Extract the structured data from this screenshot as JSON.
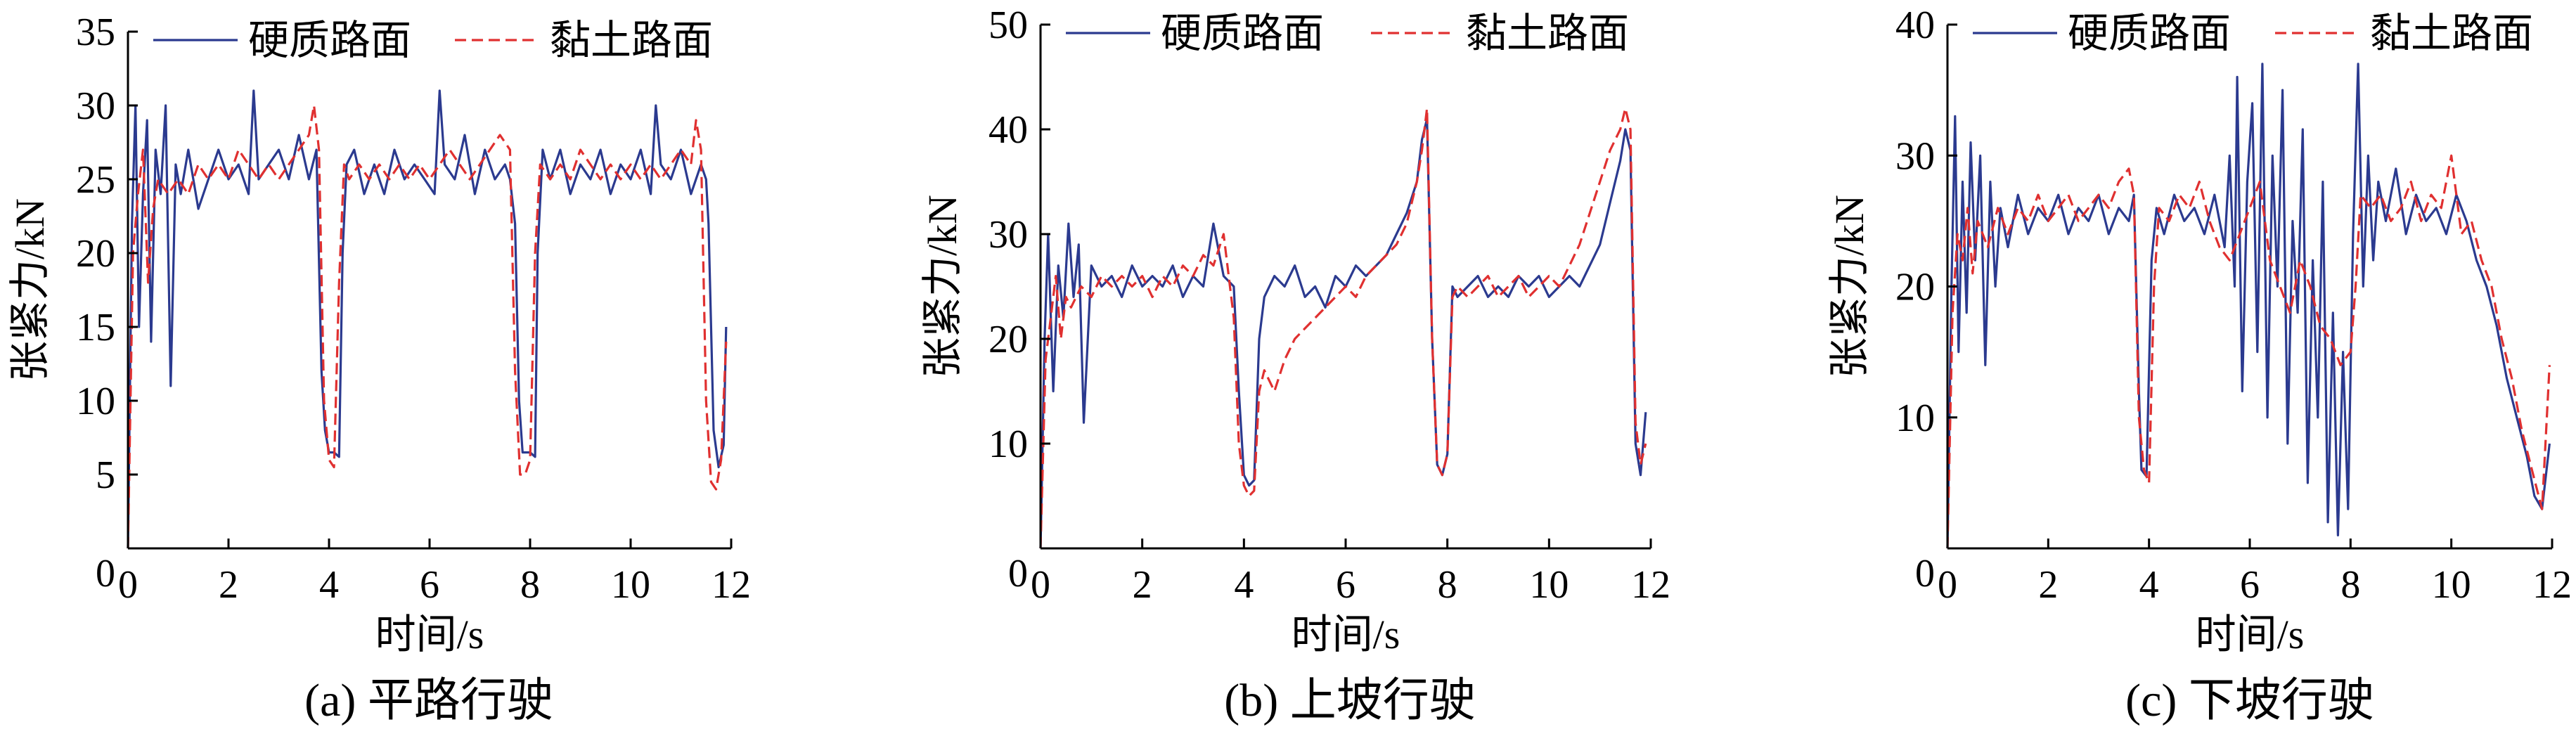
{
  "chart_data": [
    {
      "type": "line",
      "caption": "(a)  平路行驶",
      "xlabel": "时间/s",
      "ylabel": "张紧力/kN",
      "xlim": [
        0,
        12
      ],
      "ylim": [
        0,
        35
      ],
      "xticks": [
        0,
        2,
        4,
        6,
        8,
        10,
        12
      ],
      "yticks": [
        5,
        10,
        15,
        20,
        25,
        30,
        35
      ],
      "yzero_label": "0",
      "legend_position": "top",
      "series": [
        {
          "name": "硬质路面",
          "color": "#2b3a8f",
          "style": "solid",
          "x": [
            0,
            0.08,
            0.15,
            0.22,
            0.3,
            0.38,
            0.46,
            0.55,
            0.65,
            0.75,
            0.85,
            0.95,
            1.05,
            1.2,
            1.4,
            1.6,
            1.8,
            2.0,
            2.2,
            2.4,
            2.5,
            2.6,
            2.8,
            3.0,
            3.2,
            3.4,
            3.6,
            3.75,
            3.85,
            3.92,
            4.0,
            4.1,
            4.2,
            4.27,
            4.35,
            4.5,
            4.7,
            4.9,
            5.1,
            5.3,
            5.5,
            5.7,
            5.9,
            6.1,
            6.2,
            6.3,
            6.5,
            6.7,
            6.9,
            7.1,
            7.3,
            7.5,
            7.6,
            7.7,
            7.78,
            7.85,
            8.0,
            8.1,
            8.15,
            8.25,
            8.4,
            8.6,
            8.8,
            9.0,
            9.2,
            9.4,
            9.6,
            9.8,
            10.0,
            10.2,
            10.4,
            10.5,
            10.6,
            10.8,
            11.0,
            11.2,
            11.4,
            11.5,
            11.55,
            11.65,
            11.75,
            11.85,
            11.9
          ],
          "y": [
            0,
            22,
            30,
            15,
            24,
            29,
            14,
            27,
            24,
            30,
            11,
            26,
            24,
            27,
            23,
            25,
            27,
            25,
            26,
            24,
            31,
            25,
            26,
            27,
            25,
            28,
            25,
            27,
            12,
            8,
            6.5,
            6.5,
            6.2,
            20,
            26,
            27,
            24,
            26,
            24,
            27,
            25,
            26,
            25,
            24,
            31,
            26,
            25,
            28,
            24,
            27,
            25,
            26,
            25,
            22,
            10,
            6.5,
            6.5,
            6.2,
            20,
            27,
            25,
            27,
            24,
            26,
            25,
            27,
            24,
            26,
            25,
            27,
            24,
            30,
            26,
            25,
            27,
            24,
            26,
            25,
            22,
            8,
            5.5,
            7,
            15
          ]
        },
        {
          "name": "黏土路面",
          "color": "#e03030",
          "style": "dashed",
          "x": [
            0,
            0.1,
            0.2,
            0.3,
            0.4,
            0.5,
            0.6,
            0.8,
            1.0,
            1.2,
            1.4,
            1.6,
            1.8,
            2.0,
            2.2,
            2.4,
            2.6,
            2.8,
            3.0,
            3.2,
            3.4,
            3.6,
            3.7,
            3.8,
            3.9,
            4.0,
            4.1,
            4.2,
            4.3,
            4.4,
            4.6,
            4.8,
            5.0,
            5.2,
            5.4,
            5.6,
            5.8,
            6.0,
            6.2,
            6.4,
            6.6,
            6.8,
            7.0,
            7.2,
            7.4,
            7.6,
            7.7,
            7.8,
            7.9,
            8.0,
            8.1,
            8.2,
            8.4,
            8.6,
            8.8,
            9.0,
            9.2,
            9.4,
            9.6,
            9.8,
            10.0,
            10.2,
            10.4,
            10.6,
            10.8,
            11.0,
            11.2,
            11.3,
            11.4,
            11.5,
            11.6,
            11.7,
            11.8,
            11.9
          ],
          "y": [
            0,
            20,
            24,
            27,
            18,
            23,
            25,
            24,
            25,
            24,
            26,
            25,
            26,
            25,
            27,
            26,
            25,
            26,
            25,
            26,
            27,
            28,
            30,
            27,
            10,
            6,
            5.5,
            18,
            26,
            25,
            26,
            25,
            26,
            25,
            26,
            25,
            26,
            25,
            26,
            27,
            26,
            25,
            26,
            27,
            28,
            27,
            12,
            5,
            5,
            6,
            20,
            26,
            25,
            26,
            25,
            27,
            26,
            25,
            26,
            25,
            26,
            25,
            26,
            25,
            26,
            27,
            26,
            29,
            27,
            10,
            4.5,
            4,
            6,
            14
          ]
        }
      ]
    },
    {
      "type": "line",
      "caption": "(b)  上坡行驶",
      "xlabel": "时间/s",
      "ylabel": "张紧力/kN",
      "xlim": [
        0,
        12
      ],
      "ylim": [
        0,
        50
      ],
      "xticks": [
        0,
        2,
        4,
        6,
        8,
        10,
        12
      ],
      "yticks": [
        10,
        20,
        30,
        40,
        50
      ],
      "yzero_label": "0",
      "legend_position": "top",
      "series": [
        {
          "name": "硬质路面",
          "color": "#2b3a8f",
          "style": "solid",
          "x": [
            0,
            0.08,
            0.15,
            0.25,
            0.35,
            0.45,
            0.55,
            0.65,
            0.75,
            0.85,
            1.0,
            1.2,
            1.4,
            1.6,
            1.8,
            2.0,
            2.2,
            2.4,
            2.6,
            2.8,
            3.0,
            3.2,
            3.4,
            3.6,
            3.8,
            3.9,
            4.0,
            4.1,
            4.2,
            4.3,
            4.4,
            4.6,
            4.8,
            5.0,
            5.2,
            5.4,
            5.6,
            5.8,
            6.0,
            6.2,
            6.4,
            6.6,
            6.8,
            7.0,
            7.2,
            7.4,
            7.5,
            7.6,
            7.7,
            7.8,
            7.9,
            8.0,
            8.1,
            8.2,
            8.4,
            8.6,
            8.8,
            9.0,
            9.2,
            9.4,
            9.6,
            9.8,
            10.0,
            10.2,
            10.4,
            10.6,
            10.8,
            11.0,
            11.2,
            11.4,
            11.5,
            11.6,
            11.7,
            11.8,
            11.9
          ],
          "y": [
            0,
            20,
            30,
            15,
            27,
            22,
            31,
            24,
            29,
            12,
            27,
            25,
            26,
            24,
            27,
            25,
            26,
            25,
            27,
            24,
            26,
            25,
            31,
            26,
            25,
            15,
            7,
            6,
            6.5,
            20,
            24,
            26,
            25,
            27,
            24,
            25,
            23,
            26,
            25,
            27,
            26,
            27,
            28,
            30,
            32,
            35,
            39,
            41,
            20,
            8,
            7,
            9,
            25,
            24,
            25,
            26,
            24,
            25,
            24,
            26,
            25,
            26,
            24,
            25,
            26,
            25,
            27,
            29,
            33,
            37,
            40,
            38,
            10,
            7,
            13
          ]
        },
        {
          "name": "黏土路面",
          "color": "#e03030",
          "style": "dashed",
          "x": [
            0,
            0.1,
            0.2,
            0.3,
            0.4,
            0.5,
            0.6,
            0.8,
            1.0,
            1.2,
            1.4,
            1.6,
            1.8,
            2.0,
            2.2,
            2.4,
            2.6,
            2.8,
            3.0,
            3.2,
            3.4,
            3.6,
            3.8,
            3.9,
            4.0,
            4.1,
            4.2,
            4.3,
            4.4,
            4.6,
            4.8,
            5.0,
            5.2,
            5.4,
            5.6,
            5.8,
            6.0,
            6.2,
            6.4,
            6.6,
            6.8,
            7.0,
            7.2,
            7.4,
            7.5,
            7.6,
            7.7,
            7.8,
            7.9,
            8.0,
            8.1,
            8.2,
            8.4,
            8.6,
            8.8,
            9.0,
            9.2,
            9.4,
            9.6,
            9.8,
            10.0,
            10.2,
            10.4,
            10.6,
            10.8,
            11.0,
            11.2,
            11.4,
            11.5,
            11.6,
            11.7,
            11.8,
            11.9
          ],
          "y": [
            0,
            18,
            22,
            26,
            20,
            24,
            23,
            25,
            24,
            26,
            25,
            26,
            25,
            26,
            24,
            26,
            25,
            27,
            26,
            28,
            27,
            30,
            22,
            10,
            6,
            5,
            5.5,
            15,
            17,
            15,
            18,
            20,
            21,
            22,
            23,
            24,
            25,
            24,
            26,
            27,
            28,
            29,
            31,
            35,
            38,
            42,
            20,
            8,
            7,
            9,
            24,
            25,
            24,
            25,
            26,
            24,
            25,
            26,
            24,
            25,
            26,
            25,
            27,
            29,
            32,
            35,
            38,
            40,
            42,
            40,
            12,
            8,
            10
          ]
        }
      ]
    },
    {
      "type": "line",
      "caption": "(c)  下坡行驶",
      "xlabel": "时间/s",
      "ylabel": "张紧力/kN",
      "xlim": [
        0,
        12
      ],
      "ylim": [
        0,
        40
      ],
      "xticks": [
        0,
        2,
        4,
        6,
        8,
        10,
        12
      ],
      "yticks": [
        10,
        20,
        30,
        40
      ],
      "yzero_label": "0",
      "legend_position": "top",
      "series": [
        {
          "name": "硬质路面",
          "color": "#2b3a8f",
          "style": "solid",
          "x": [
            0,
            0.08,
            0.15,
            0.22,
            0.3,
            0.38,
            0.46,
            0.55,
            0.65,
            0.75,
            0.85,
            0.95,
            1.05,
            1.2,
            1.4,
            1.6,
            1.8,
            2.0,
            2.2,
            2.4,
            2.6,
            2.8,
            3.0,
            3.2,
            3.4,
            3.6,
            3.7,
            3.8,
            3.85,
            3.95,
            4.05,
            4.15,
            4.3,
            4.5,
            4.7,
            4.9,
            5.1,
            5.3,
            5.5,
            5.6,
            5.7,
            5.75,
            5.85,
            5.95,
            6.05,
            6.15,
            6.25,
            6.35,
            6.45,
            6.55,
            6.65,
            6.75,
            6.85,
            6.95,
            7.05,
            7.15,
            7.25,
            7.35,
            7.45,
            7.55,
            7.65,
            7.75,
            7.85,
            7.95,
            8.05,
            8.15,
            8.25,
            8.35,
            8.45,
            8.55,
            8.7,
            8.9,
            9.1,
            9.3,
            9.5,
            9.7,
            9.9,
            10.1,
            10.3,
            10.5,
            10.7,
            10.9,
            11.1,
            11.3,
            11.5,
            11.65,
            11.8,
            11.95
          ],
          "y": [
            0,
            20,
            33,
            15,
            28,
            18,
            31,
            22,
            30,
            14,
            28,
            20,
            26,
            23,
            27,
            24,
            26,
            25,
            27,
            24,
            26,
            25,
            27,
            24,
            26,
            25,
            27,
            12,
            6,
            5.5,
            22,
            26,
            24,
            27,
            25,
            26,
            24,
            27,
            23,
            30,
            20,
            36,
            12,
            28,
            34,
            15,
            37,
            10,
            30,
            20,
            35,
            8,
            25,
            18,
            32,
            5,
            22,
            10,
            28,
            2,
            18,
            1,
            15,
            3,
            24,
            37,
            20,
            30,
            22,
            28,
            25,
            29,
            24,
            27,
            25,
            26,
            24,
            27,
            25,
            22,
            20,
            17,
            13,
            10,
            7,
            4,
            3,
            8
          ]
        },
        {
          "name": "黏土路面",
          "color": "#e03030",
          "style": "dashed",
          "x": [
            0,
            0.1,
            0.2,
            0.3,
            0.4,
            0.5,
            0.6,
            0.8,
            1.0,
            1.2,
            1.4,
            1.6,
            1.8,
            2.0,
            2.2,
            2.4,
            2.6,
            2.8,
            3.0,
            3.2,
            3.4,
            3.6,
            3.7,
            3.8,
            3.9,
            4.0,
            4.1,
            4.2,
            4.4,
            4.6,
            4.8,
            5.0,
            5.2,
            5.4,
            5.6,
            5.8,
            6.0,
            6.2,
            6.4,
            6.6,
            6.8,
            7.0,
            7.2,
            7.4,
            7.6,
            7.8,
            8.0,
            8.1,
            8.2,
            8.4,
            8.6,
            8.8,
            9.0,
            9.2,
            9.4,
            9.6,
            9.8,
            10.0,
            10.2,
            10.4,
            10.6,
            10.8,
            11.0,
            11.2,
            11.4,
            11.6,
            11.8,
            11.95
          ],
          "y": [
            0,
            18,
            24,
            22,
            26,
            21,
            25,
            23,
            26,
            24,
            26,
            25,
            27,
            25,
            26,
            27,
            25,
            26,
            27,
            26,
            28,
            29,
            27,
            10,
            6,
            5,
            20,
            26,
            25,
            27,
            26,
            28,
            25,
            23,
            22,
            24,
            26,
            28,
            22,
            20,
            18,
            22,
            20,
            17,
            16,
            14,
            15,
            20,
            27,
            26,
            27,
            25,
            26,
            28,
            25,
            27,
            26,
            30,
            24,
            25,
            22,
            20,
            16,
            13,
            9,
            6,
            3,
            14
          ]
        }
      ]
    }
  ]
}
